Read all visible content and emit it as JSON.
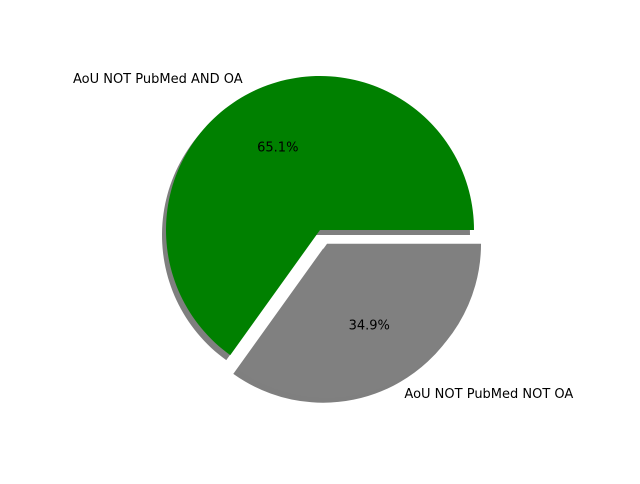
{
  "chart_data": {
    "type": "pie",
    "title": "",
    "slices": [
      {
        "label": "AoU NOT PubMed AND OA",
        "value": 65.1,
        "pct_label": "65.1%",
        "color": "#008000",
        "explode": 0.0
      },
      {
        "label": "AoU NOT PubMed NOT OA",
        "value": 34.9,
        "pct_label": "34.9%",
        "color": "#808080",
        "explode": 0.1
      }
    ],
    "start_angle_deg": 0,
    "direction": "counterclockwise",
    "shadow": true,
    "legend": "none"
  }
}
